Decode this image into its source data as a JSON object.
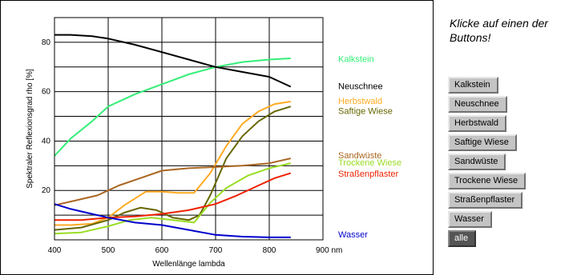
{
  "chart_data": {
    "type": "line",
    "title": "",
    "xlabel": "Wellenlänge lambda",
    "ylabel": "Spektraler Reflexionsgrad rho [%]",
    "xlim": [
      400,
      900
    ],
    "ylim": [
      0,
      90
    ],
    "x_ticks": [
      "400",
      "500",
      "600",
      "700",
      "800",
      "900 nm"
    ],
    "y_ticks": [
      "20",
      "40",
      "60",
      "80"
    ],
    "grid": true,
    "legend_position": "right",
    "series": [
      {
        "name": "Kalkstein",
        "color": "#33ee77",
        "points": [
          [
            400,
            34
          ],
          [
            430,
            41
          ],
          [
            470,
            48
          ],
          [
            500,
            54
          ],
          [
            550,
            59
          ],
          [
            600,
            63
          ],
          [
            650,
            67
          ],
          [
            700,
            70
          ],
          [
            750,
            72
          ],
          [
            800,
            73
          ],
          [
            840,
            73.5
          ]
        ]
      },
      {
        "name": "Neuschnee",
        "color": "#000000",
        "points": [
          [
            400,
            83
          ],
          [
            430,
            83
          ],
          [
            470,
            82.5
          ],
          [
            500,
            81.5
          ],
          [
            550,
            79
          ],
          [
            600,
            76
          ],
          [
            650,
            73
          ],
          [
            700,
            70
          ],
          [
            750,
            68
          ],
          [
            800,
            66
          ],
          [
            840,
            62
          ]
        ]
      },
      {
        "name": "Herbstwald",
        "color": "#ffaa22",
        "points": [
          [
            400,
            6
          ],
          [
            430,
            6
          ],
          [
            470,
            6.5
          ],
          [
            500,
            9
          ],
          [
            530,
            14
          ],
          [
            570,
            19.5
          ],
          [
            600,
            19.5
          ],
          [
            630,
            19
          ],
          [
            660,
            19
          ],
          [
            690,
            27
          ],
          [
            720,
            38
          ],
          [
            750,
            47
          ],
          [
            780,
            52
          ],
          [
            810,
            55
          ],
          [
            840,
            56
          ]
        ]
      },
      {
        "name": "Saftige Wiese",
        "color": "#666600",
        "points": [
          [
            400,
            4
          ],
          [
            450,
            5
          ],
          [
            500,
            8
          ],
          [
            530,
            11
          ],
          [
            560,
            13
          ],
          [
            590,
            12
          ],
          [
            620,
            9
          ],
          [
            650,
            8
          ],
          [
            670,
            10
          ],
          [
            690,
            18
          ],
          [
            720,
            33
          ],
          [
            750,
            42
          ],
          [
            780,
            48
          ],
          [
            810,
            52
          ],
          [
            840,
            54
          ]
        ]
      },
      {
        "name": "Sandwüste",
        "color": "#aa6622",
        "points": [
          [
            400,
            14
          ],
          [
            440,
            16
          ],
          [
            480,
            18
          ],
          [
            520,
            22
          ],
          [
            560,
            25
          ],
          [
            600,
            28
          ],
          [
            650,
            29
          ],
          [
            700,
            29.5
          ],
          [
            750,
            30
          ],
          [
            800,
            31
          ],
          [
            840,
            33
          ]
        ]
      },
      {
        "name": "Trockene Wiese",
        "color": "#99dd22",
        "points": [
          [
            400,
            2.5
          ],
          [
            450,
            3
          ],
          [
            500,
            5.5
          ],
          [
            540,
            8
          ],
          [
            580,
            9
          ],
          [
            620,
            8
          ],
          [
            660,
            7
          ],
          [
            690,
            15
          ],
          [
            720,
            21
          ],
          [
            760,
            26
          ],
          [
            800,
            29
          ],
          [
            840,
            31
          ]
        ]
      },
      {
        "name": "Straßenpflaster",
        "color": "#ee2200",
        "points": [
          [
            400,
            8
          ],
          [
            450,
            8
          ],
          [
            500,
            9
          ],
          [
            550,
            9.5
          ],
          [
            600,
            10.5
          ],
          [
            650,
            12
          ],
          [
            700,
            14.5
          ],
          [
            740,
            18
          ],
          [
            780,
            22
          ],
          [
            810,
            25
          ],
          [
            840,
            27
          ]
        ]
      },
      {
        "name": "Wasser",
        "color": "#0000cc",
        "points": [
          [
            400,
            14.5
          ],
          [
            430,
            12.5
          ],
          [
            470,
            10.5
          ],
          [
            500,
            9
          ],
          [
            550,
            7
          ],
          [
            600,
            6
          ],
          [
            650,
            4
          ],
          [
            700,
            2
          ],
          [
            750,
            1.3
          ],
          [
            800,
            1
          ],
          [
            840,
            1
          ]
        ]
      }
    ]
  },
  "sidebar": {
    "prompt": "Klicke auf einen der\nButtons!",
    "buttons": [
      {
        "label": "Kalkstein",
        "active": false
      },
      {
        "label": "Neuschnee",
        "active": false
      },
      {
        "label": "Herbstwald",
        "active": false
      },
      {
        "label": "Saftige Wiese",
        "active": false
      },
      {
        "label": "Sandwüste",
        "active": false
      },
      {
        "label": "Trockene Wiese",
        "active": false
      },
      {
        "label": "Straßenpflaster",
        "active": false
      },
      {
        "label": "Wasser",
        "active": false
      },
      {
        "label": "alle",
        "active": true
      }
    ]
  }
}
